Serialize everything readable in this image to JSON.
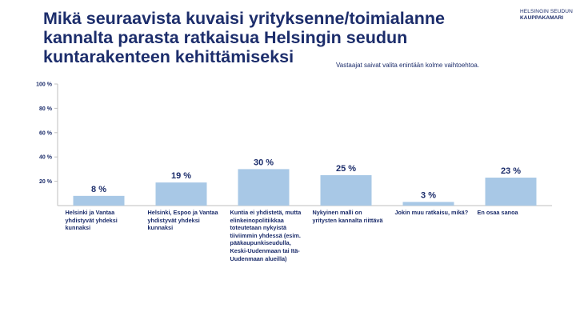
{
  "header": {
    "title_lines": [
      "Mikä seuraavista kuvaisi yrityksenne/toimialanne",
      "kannalta parasta ratkaisua Helsingin seudun",
      "kuntarakenteen kehittämiseksi"
    ],
    "subtitle": "Vastaajat saivat valita enintään kolme vaihtoehtoa.",
    "logo_lines": [
      "HELSINGIN SEUDUN",
      "KAUPPAKAMARI"
    ]
  },
  "chart_data": {
    "type": "bar",
    "categories": [
      "Helsinki ja Vantaa yhdistyvät yhdeksi kunnaksi",
      "Helsinki, Espoo ja Vantaa yhdistyvät yhdeksi kunnaksi",
      "Kuntia ei yhdistetä, mutta elinkeinopolitiikkaa toteutetaan nykyistä tiiviimmin yhdessä (esim. pääkaupunkiseudulla, Keski-Uudenmaan tai Itä-Uudenmaan alueilla)",
      "Nykyinen malli on yritysten kannalta riittävä",
      "Jokin muu ratkaisu, mikä?",
      "En osaa sanoa"
    ],
    "values": [
      8,
      19,
      30,
      25,
      3,
      23
    ],
    "value_labels": [
      "8 %",
      "19 %",
      "30 %",
      "25 %",
      "3 %",
      "23 %"
    ],
    "yticks": [
      "100 %",
      "80 %",
      "60 %",
      "40 %",
      "20 %"
    ],
    "ytick_values": [
      100,
      80,
      60,
      40,
      20
    ],
    "ylim": [
      0,
      100
    ],
    "xlabel": "",
    "ylabel": "",
    "grid": false,
    "colors": {
      "bar": "#a8c8e6",
      "axis": "#bfbfbf",
      "text": "#1c2d6b"
    }
  }
}
